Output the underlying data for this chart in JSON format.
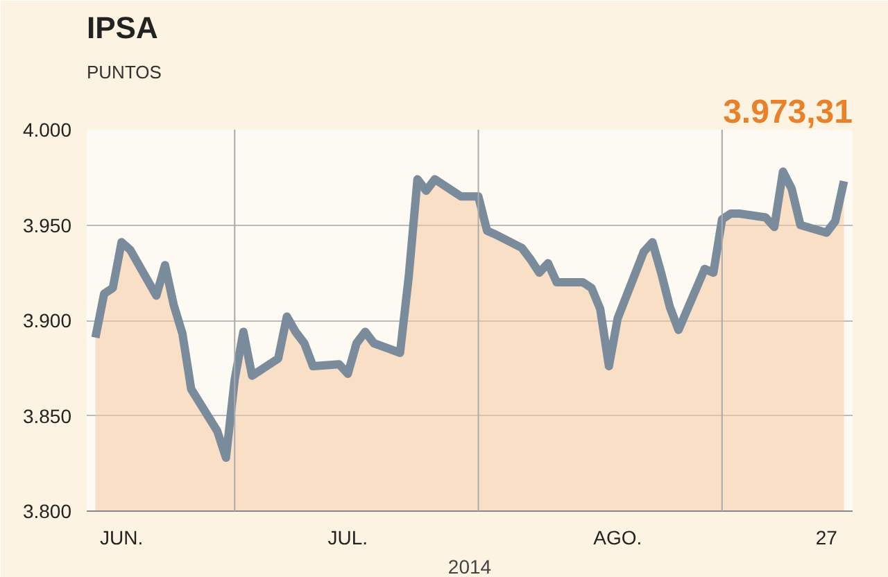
{
  "chart_data": {
    "type": "area",
    "title": "IPSA",
    "subtitle": "PUNTOS",
    "xlabel": "2014",
    "x": [
      "2014-06-02",
      "2014-06-03",
      "2014-06-04",
      "2014-06-05",
      "2014-06-06",
      "2014-06-09",
      "2014-06-10",
      "2014-06-11",
      "2014-06-12",
      "2014-06-13",
      "2014-06-16",
      "2014-06-17",
      "2014-06-18",
      "2014-06-19",
      "2014-06-20",
      "2014-06-23",
      "2014-06-24",
      "2014-06-25",
      "2014-06-26",
      "2014-06-27",
      "2014-06-30",
      "2014-07-01",
      "2014-07-02",
      "2014-07-03",
      "2014-07-04",
      "2014-07-07",
      "2014-07-08",
      "2014-07-09",
      "2014-07-10",
      "2014-07-11",
      "2014-07-14",
      "2014-07-15",
      "2014-07-16",
      "2014-07-17",
      "2014-07-18",
      "2014-07-21",
      "2014-07-22",
      "2014-07-23",
      "2014-07-24",
      "2014-07-25",
      "2014-07-28",
      "2014-07-29",
      "2014-07-30",
      "2014-07-31",
      "2014-08-01",
      "2014-08-04",
      "2014-08-05",
      "2014-08-06",
      "2014-08-07",
      "2014-08-08",
      "2014-08-11",
      "2014-08-12",
      "2014-08-13",
      "2014-08-14",
      "2014-08-15",
      "2014-08-18",
      "2014-08-19",
      "2014-08-20",
      "2014-08-21",
      "2014-08-22",
      "2014-08-25",
      "2014-08-26",
      "2014-08-27"
    ],
    "series": [
      {
        "color": "#7a8c9c",
        "values": [
          3891,
          3914,
          3917,
          3941,
          3937,
          3913,
          3929,
          3908,
          3893,
          3864,
          3842,
          3828,
          3869,
          3894,
          3871,
          3880,
          3902,
          3894,
          3888,
          3876,
          3877,
          3872,
          3888,
          3894,
          3888,
          3883,
          3923,
          3974,
          3968,
          3974,
          3965,
          3965,
          3965,
          3947,
          3945,
          3938,
          3932,
          3925,
          3930,
          3920,
          3920,
          3917,
          3906,
          3876,
          3901,
          3936,
          3941,
          3925,
          3907,
          3895,
          3927,
          3925,
          3953,
          3956,
          3956,
          3954,
          3949,
          3978,
          3969,
          3950,
          3946,
          3952,
          3973
        ]
      }
    ],
    "xlim": [
      "2014-06-01",
      "2014-08-28"
    ],
    "xticks": [
      {
        "value": "2014-06-05",
        "label": "JUN."
      },
      {
        "value": "2014-07-01",
        "label": "JUL."
      },
      {
        "value": "2014-08-01",
        "label": "AGO."
      },
      {
        "value": "2014-08-25",
        "label": "27"
      }
    ],
    "ylim": [
      3800,
      4000
    ],
    "yticks": [
      {
        "value": 3800,
        "label": "3.800"
      },
      {
        "value": 3850,
        "label": "3.850"
      },
      {
        "value": 3900,
        "label": "3.900"
      },
      {
        "value": 3950,
        "label": "3.950"
      },
      {
        "value": 4000,
        "label": "4.000"
      }
    ],
    "ref_lines": [
      {
        "axis": "x",
        "value": "2014-06-18",
        "color": "#aaaaaa"
      },
      {
        "axis": "x",
        "value": "2014-07-16",
        "color": "#aaaaaa"
      },
      {
        "axis": "x",
        "value": "2014-08-13",
        "color": "#aaaaaa"
      }
    ],
    "annotations": [
      "3.973,31"
    ],
    "grid": "y",
    "marker": "none",
    "line_style": "solid"
  }
}
